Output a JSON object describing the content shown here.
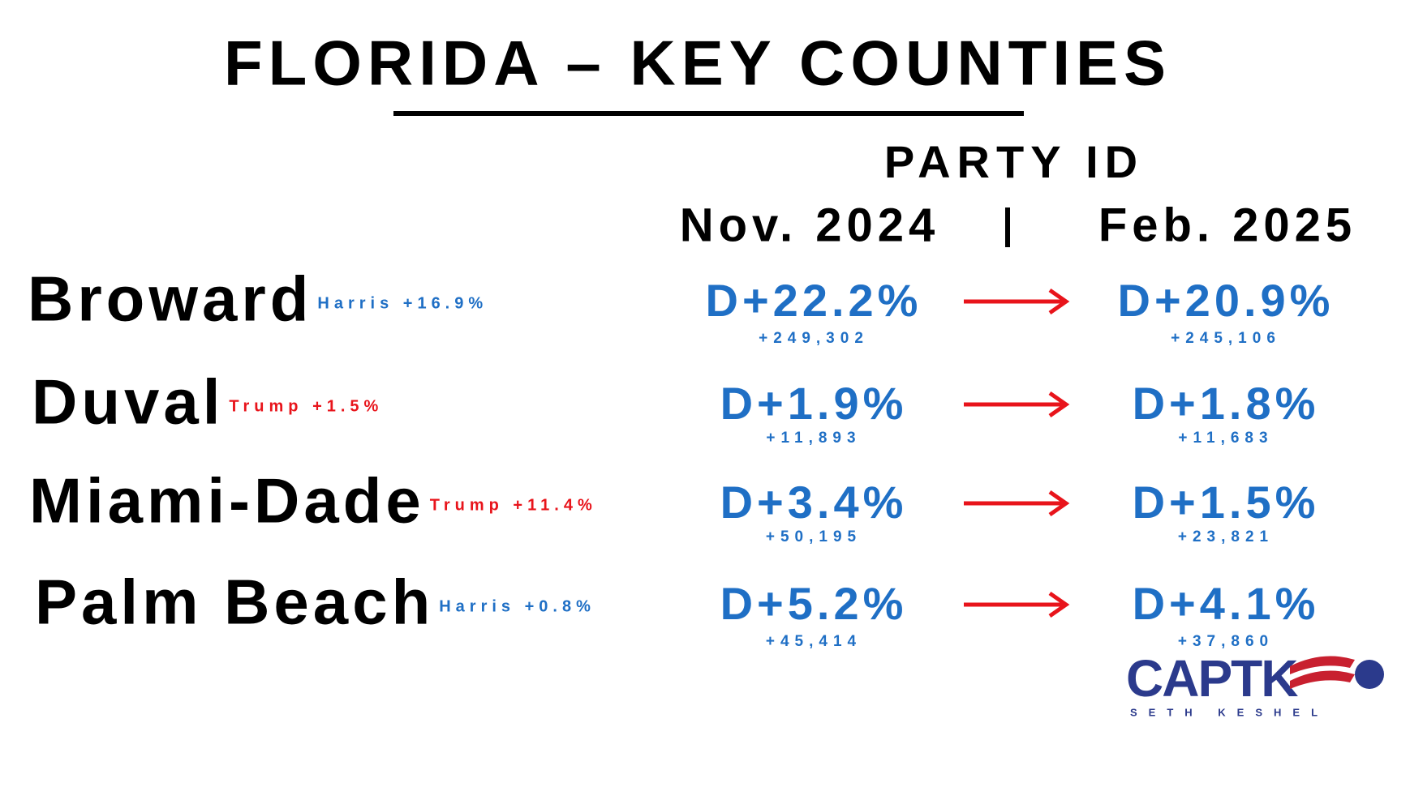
{
  "title": "FLORIDA – KEY COUNTIES",
  "header": "PARTY ID",
  "columns": [
    "Nov. 2024",
    "Feb. 2025"
  ],
  "rows": [
    {
      "county": "Broward",
      "result": "Harris +16.9%",
      "result_color": "#1f6fc5",
      "nov": "D+22.2%",
      "nov_count": "+249,302",
      "feb": "D+20.9%",
      "feb_count": "+245,106"
    },
    {
      "county": "Duval",
      "result": "Trump +1.5%",
      "result_color": "#e8141b",
      "nov": "D+1.9%",
      "nov_count": "+11,893",
      "feb": "D+1.8%",
      "feb_count": "+11,683"
    },
    {
      "county": "Miami-Dade",
      "result": "Trump +11.4%",
      "result_color": "#e8141b",
      "nov": "D+3.4%",
      "nov_count": "+50,195",
      "feb": "D+1.5%",
      "feb_count": "+23,821"
    },
    {
      "county": "Palm Beach",
      "result": "Harris +0.8%",
      "result_color": "#1f6fc5",
      "nov": "D+5.2%",
      "nov_count": "+45,414",
      "feb": "D+4.1%",
      "feb_count": "+37,860"
    }
  ],
  "logo": {
    "name": "CAPTK",
    "subtitle": "SETH KESHEL"
  }
}
